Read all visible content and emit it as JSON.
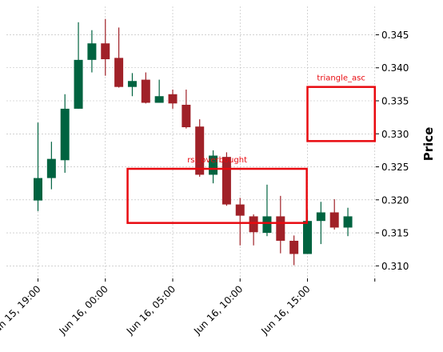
{
  "chart_data": {
    "type": "candlestick",
    "title": "",
    "xlabel": "",
    "ylabel": "Price",
    "ylim": [
      0.3081,
      0.3493
    ],
    "grid": true,
    "x_ticks": [
      "Jun 15, 19:00",
      "Jun 16, 00:00",
      "Jun 16, 05:00",
      "Jun 16, 10:00",
      "Jun 16, 15:00"
    ],
    "x_tick_indices": [
      0,
      5,
      10,
      15,
      20
    ],
    "y_ticks": [
      "0.310",
      "0.315",
      "0.320",
      "0.325",
      "0.330",
      "0.335",
      "0.340",
      "0.345"
    ],
    "up_color": "#006340",
    "down_color": "#a02128",
    "candles": [
      {
        "o": 0.3199,
        "h": 0.3317,
        "l": 0.3183,
        "c": 0.3233
      },
      {
        "o": 0.3233,
        "h": 0.3288,
        "l": 0.3216,
        "c": 0.3262
      },
      {
        "o": 0.326,
        "h": 0.336,
        "l": 0.3241,
        "c": 0.3338
      },
      {
        "o": 0.3338,
        "h": 0.3469,
        "l": 0.3338,
        "c": 0.3412
      },
      {
        "o": 0.3412,
        "h": 0.3457,
        "l": 0.3393,
        "c": 0.3437
      },
      {
        "o": 0.3437,
        "h": 0.3474,
        "l": 0.3388,
        "c": 0.3413
      },
      {
        "o": 0.3415,
        "h": 0.3461,
        "l": 0.337,
        "c": 0.3371
      },
      {
        "o": 0.3371,
        "h": 0.3392,
        "l": 0.3357,
        "c": 0.338
      },
      {
        "o": 0.3382,
        "h": 0.3393,
        "l": 0.3346,
        "c": 0.3347
      },
      {
        "o": 0.3347,
        "h": 0.3382,
        "l": 0.3347,
        "c": 0.3357
      },
      {
        "o": 0.336,
        "h": 0.3367,
        "l": 0.3338,
        "c": 0.3346
      },
      {
        "o": 0.3344,
        "h": 0.3367,
        "l": 0.3308,
        "c": 0.331
      },
      {
        "o": 0.3311,
        "h": 0.3322,
        "l": 0.3235,
        "c": 0.3238
      },
      {
        "o": 0.3238,
        "h": 0.3275,
        "l": 0.3225,
        "c": 0.3267
      },
      {
        "o": 0.3265,
        "h": 0.3272,
        "l": 0.3191,
        "c": 0.3193
      },
      {
        "o": 0.3193,
        "h": 0.3203,
        "l": 0.3131,
        "c": 0.3176
      },
      {
        "o": 0.3175,
        "h": 0.3178,
        "l": 0.3131,
        "c": 0.3151
      },
      {
        "o": 0.315,
        "h": 0.3223,
        "l": 0.3145,
        "c": 0.3175
      },
      {
        "o": 0.3175,
        "h": 0.3206,
        "l": 0.3119,
        "c": 0.3138
      },
      {
        "o": 0.3138,
        "h": 0.3146,
        "l": 0.3101,
        "c": 0.3118
      },
      {
        "o": 0.3118,
        "h": 0.3185,
        "l": 0.3118,
        "c": 0.3168
      },
      {
        "o": 0.3168,
        "h": 0.3197,
        "l": 0.3133,
        "c": 0.3181
      },
      {
        "o": 0.3181,
        "h": 0.3201,
        "l": 0.3155,
        "c": 0.3158
      },
      {
        "o": 0.3158,
        "h": 0.3188,
        "l": 0.3145,
        "c": 0.3175
      }
    ],
    "annotations": [
      {
        "label": "rsi_overbought",
        "x_start": 6.65,
        "x_end": 19.95,
        "y_low": 0.3165,
        "y_high": 0.3247
      },
      {
        "label": "triangle_asc",
        "x_start": 20.0,
        "x_end": 25.0,
        "y_low": 0.3289,
        "y_high": 0.3371
      }
    ],
    "annotation_color": "#e8090f"
  }
}
